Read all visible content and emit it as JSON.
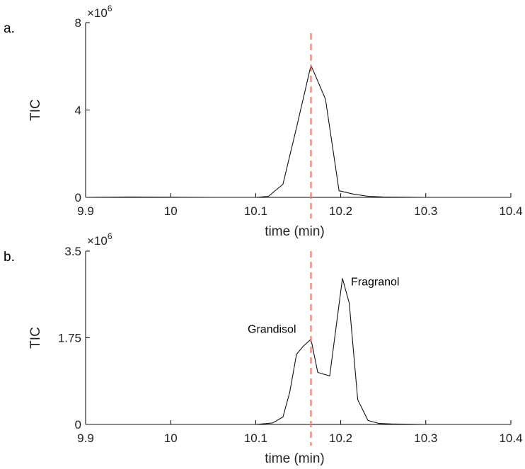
{
  "chart_data": [
    {
      "type": "line",
      "panel_label": "a.",
      "xlabel": "time (min)",
      "ylabel": "TIC",
      "y_multiplier": "×10",
      "y_multiplier_exp": "6",
      "xlim": [
        9.9,
        10.4
      ],
      "ylim": [
        0,
        8
      ],
      "xticks": [
        9.9,
        10.0,
        10.1,
        10.2,
        10.3,
        10.4
      ],
      "xtick_labels": [
        "9.9",
        "10",
        "10.1",
        "10.2",
        "10.3",
        "10.4"
      ],
      "yticks": [
        0,
        4,
        8
      ],
      "ytick_labels": [
        "0",
        "4",
        "8"
      ],
      "reference_x": 10.165,
      "colors": {
        "series": "#111111",
        "reference": "#f0705a"
      },
      "series": [
        {
          "x": [
            9.9,
            9.95,
            10.0,
            10.05,
            10.1,
            10.115,
            10.132,
            10.148,
            10.165,
            10.182,
            10.198,
            10.215,
            10.232,
            10.25,
            10.3,
            10.35,
            10.4
          ],
          "y": [
            0,
            0.02,
            0.01,
            0,
            0,
            0.05,
            0.6,
            3.2,
            6.05,
            4.5,
            0.3,
            0.15,
            0.05,
            0.02,
            0,
            0,
            0
          ]
        }
      ],
      "annotations": []
    },
    {
      "type": "line",
      "panel_label": "b.",
      "xlabel": "time (min)",
      "ylabel": "TIC",
      "y_multiplier": "×10",
      "y_multiplier_exp": "6",
      "xlim": [
        9.9,
        10.4
      ],
      "ylim": [
        0,
        3.5
      ],
      "xticks": [
        9.9,
        10.0,
        10.1,
        10.2,
        10.3,
        10.4
      ],
      "xtick_labels": [
        "9.9",
        "10",
        "10.1",
        "10.2",
        "10.3",
        "10.4"
      ],
      "yticks": [
        0,
        1.75,
        3.5
      ],
      "ytick_labels": [
        "0",
        "1.75",
        "3.5"
      ],
      "reference_x": 10.165,
      "colors": {
        "series": "#111111",
        "reference": "#f0705a"
      },
      "series": [
        {
          "x": [
            9.9,
            10.0,
            10.1,
            10.12,
            10.132,
            10.14,
            10.148,
            10.156,
            10.165,
            10.173,
            10.187,
            10.202,
            10.21,
            10.22,
            10.232,
            10.245,
            10.26,
            10.3,
            10.4
          ],
          "y": [
            0,
            0,
            0,
            0.03,
            0.15,
            0.65,
            1.42,
            1.58,
            1.72,
            1.05,
            0.98,
            2.95,
            2.45,
            0.5,
            0.08,
            0.02,
            0.01,
            0,
            0
          ]
        }
      ],
      "annotations": [
        {
          "text": "Grandisol",
          "x": 10.165,
          "y": 1.72,
          "anchor": "left"
        },
        {
          "text": "Fragranol",
          "x": 10.202,
          "y": 2.95,
          "anchor": "right"
        }
      ]
    }
  ]
}
